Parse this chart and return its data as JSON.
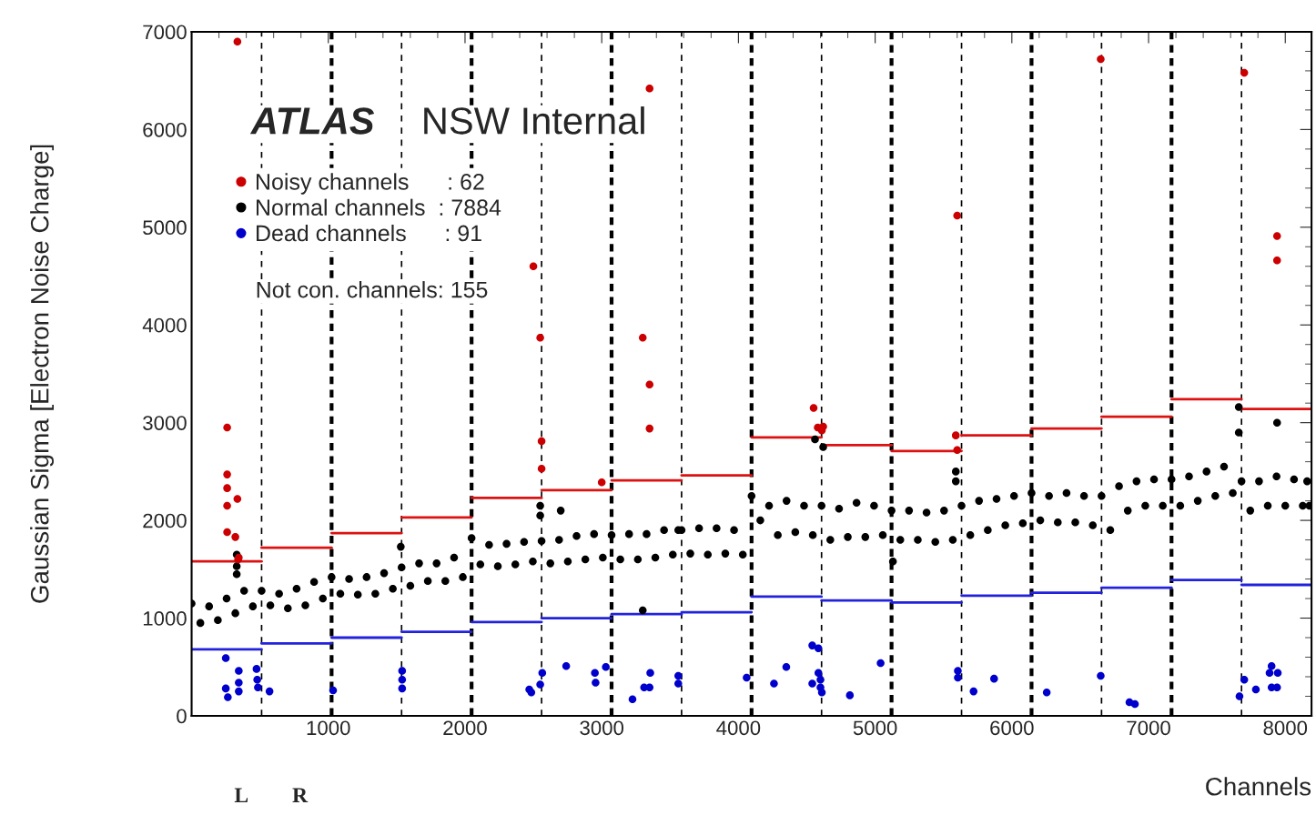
{
  "chart_data": {
    "type": "scatter",
    "xlabel": "Channels",
    "ylabel": "Gaussian Sigma [Electron Noise Charge]",
    "annotations": [
      "ATLAS",
      "NSW Internal",
      "Not con. channels: 155",
      "L",
      "R"
    ],
    "xlim": [
      0,
      8192
    ],
    "xticks": [
      1000,
      2000,
      3000,
      4000,
      5000,
      6000,
      7000,
      8000
    ],
    "ylim": [
      0,
      7000
    ],
    "yticks": [
      0,
      1000,
      2000,
      3000,
      4000,
      5000,
      6000,
      7000
    ],
    "grid": false,
    "legend": "top left",
    "marker": "circle",
    "series": [
      {
        "name": "Noisy channels      : 62",
        "color": "#cc0000",
        "x": [
          335,
          260,
          260,
          260,
          260,
          335,
          260,
          320,
          340,
          345,
          2500,
          2550,
          2560,
          2560,
          3000,
          3350,
          3300,
          3350,
          3350,
          4550,
          4580,
          4620,
          4610,
          5600,
          5590,
          5600,
          6650,
          7700,
          7940,
          7940
        ],
        "values": [
          6900,
          2950,
          2470,
          2330,
          2150,
          2220,
          1880,
          1830,
          1600,
          1620,
          4600,
          3870,
          2810,
          2530,
          2390,
          6420,
          3870,
          3390,
          2940,
          3150,
          2950,
          2960,
          2920,
          5120,
          2870,
          2720,
          6720,
          6580,
          4910,
          4660
        ]
      },
      {
        "name": "Normal channels  : 7884",
        "color": "#000000",
        "x": [
          0,
          64,
          128,
          192,
          256,
          320,
          384,
          448,
          512,
          576,
          640,
          704,
          768,
          832,
          896,
          960,
          1024,
          1088,
          1152,
          1216,
          1280,
          1344,
          1408,
          1472,
          1536,
          1600,
          1664,
          1728,
          1792,
          1856,
          1920,
          1984,
          2048,
          2112,
          2176,
          2240,
          2304,
          2368,
          2432,
          2496,
          2560,
          2624,
          2688,
          2752,
          2816,
          2880,
          2944,
          3008,
          3072,
          3136,
          3200,
          3264,
          3328,
          3392,
          3456,
          3520,
          3584,
          3648,
          3712,
          3776,
          3840,
          3904,
          3968,
          4032,
          4096,
          4160,
          4224,
          4288,
          4352,
          4416,
          4480,
          4544,
          4608,
          4672,
          4736,
          4800,
          4864,
          4928,
          4992,
          5056,
          5120,
          5184,
          5248,
          5312,
          5376,
          5440,
          5504,
          5568,
          5632,
          5696,
          5760,
          5824,
          5888,
          5952,
          6016,
          6080,
          6144,
          6208,
          6272,
          6336,
          6400,
          6464,
          6528,
          6592,
          6656,
          6720,
          6784,
          6848,
          6912,
          6976,
          7040,
          7104,
          7168,
          7232,
          7296,
          7360,
          7424,
          7488,
          7552,
          7616,
          7680,
          7744,
          7808,
          7872,
          7936,
          8000,
          8064,
          8128,
          8160,
          8176,
          330,
          330,
          330,
          1530,
          2550,
          2550,
          2700,
          3300,
          3560,
          4560,
          4620,
          5130,
          5590,
          5590,
          7660,
          7660,
          7940
        ],
        "values": [
          1150,
          950,
          1120,
          980,
          1200,
          1050,
          1280,
          1120,
          1280,
          1130,
          1250,
          1100,
          1300,
          1130,
          1370,
          1200,
          1420,
          1250,
          1400,
          1240,
          1420,
          1250,
          1460,
          1300,
          1520,
          1330,
          1560,
          1380,
          1560,
          1380,
          1620,
          1420,
          1820,
          1550,
          1750,
          1530,
          1760,
          1550,
          1780,
          1580,
          1790,
          1560,
          1800,
          1580,
          1840,
          1600,
          1860,
          1620,
          1850,
          1600,
          1860,
          1600,
          1860,
          1620,
          1900,
          1650,
          1900,
          1660,
          1920,
          1650,
          1920,
          1660,
          1900,
          1650,
          2250,
          2000,
          2150,
          1850,
          2200,
          1880,
          2150,
          1850,
          2150,
          1800,
          2120,
          1830,
          2180,
          1830,
          2150,
          1850,
          2100,
          1800,
          2100,
          1800,
          2080,
          1780,
          2100,
          1800,
          2150,
          1850,
          2200,
          1900,
          2220,
          1950,
          2250,
          1970,
          2280,
          2000,
          2250,
          1980,
          2280,
          1980,
          2250,
          1950,
          2250,
          1900,
          2350,
          2100,
          2400,
          2150,
          2420,
          2150,
          2420,
          2150,
          2450,
          2200,
          2500,
          2250,
          2550,
          2280,
          2400,
          2100,
          2400,
          2150,
          2450,
          2150,
          2420,
          2150,
          2400,
          2150,
          1650,
          1530,
          1450,
          1730,
          2150,
          2050,
          2100,
          1080,
          1900,
          2830,
          2750,
          1580,
          2500,
          2400,
          3160,
          2900,
          3000
        ]
      },
      {
        "name": "Dead channels      : 91",
        "color": "#0000cc",
        "x": [
          250,
          250,
          265,
          345,
          345,
          345,
          475,
          480,
          485,
          570,
          1035,
          1540,
          1540,
          1540,
          2470,
          2485,
          2565,
          2550,
          2740,
          2950,
          2955,
          3030,
          3225,
          3310,
          3350,
          3355,
          3560,
          3560,
          4060,
          4260,
          4350,
          4540,
          4585,
          4540,
          4585,
          4600,
          4600,
          4610,
          4815,
          5040,
          5605,
          5605,
          5720,
          5870,
          6255,
          6650,
          6860,
          6900,
          7665,
          7700,
          7785,
          7900,
          7885,
          7945,
          7900,
          7940
        ],
        "values": [
          590,
          280,
          190,
          250,
          340,
          460,
          480,
          370,
          290,
          250,
          260,
          460,
          370,
          280,
          270,
          240,
          440,
          320,
          510,
          440,
          340,
          500,
          170,
          290,
          290,
          440,
          410,
          330,
          390,
          330,
          500,
          720,
          690,
          330,
          440,
          370,
          290,
          240,
          210,
          540,
          460,
          390,
          250,
          380,
          240,
          410,
          140,
          120,
          200,
          370,
          270,
          510,
          440,
          440,
          290,
          290
        ]
      },
      {
        "type": "line",
        "marker": "none",
        "color": "#dd1111",
        "x": [
          0,
          512
        ],
        "values": [
          1580,
          1580
        ]
      },
      {
        "type": "line",
        "marker": "none",
        "color": "#dd1111",
        "x": [
          512,
          1024
        ],
        "values": [
          1720,
          1720
        ]
      },
      {
        "type": "line",
        "marker": "none",
        "color": "#dd1111",
        "x": [
          1024,
          1536
        ],
        "values": [
          1870,
          1870
        ]
      },
      {
        "type": "line",
        "marker": "none",
        "color": "#dd1111",
        "x": [
          1536,
          2048
        ],
        "values": [
          2030,
          2030
        ]
      },
      {
        "type": "line",
        "marker": "none",
        "color": "#dd1111",
        "x": [
          2048,
          2560
        ],
        "values": [
          2230,
          2230
        ]
      },
      {
        "type": "line",
        "marker": "none",
        "color": "#dd1111",
        "x": [
          2560,
          3072
        ],
        "values": [
          2310,
          2310
        ]
      },
      {
        "type": "line",
        "marker": "none",
        "color": "#dd1111",
        "x": [
          3072,
          3584
        ],
        "values": [
          2410,
          2410
        ]
      },
      {
        "type": "line",
        "marker": "none",
        "color": "#dd1111",
        "x": [
          3584,
          4096
        ],
        "values": [
          2460,
          2460
        ]
      },
      {
        "type": "line",
        "marker": "none",
        "color": "#dd1111",
        "x": [
          4096,
          4608
        ],
        "values": [
          2850,
          2850
        ]
      },
      {
        "type": "line",
        "marker": "none",
        "color": "#dd1111",
        "x": [
          4608,
          5120
        ],
        "values": [
          2770,
          2770
        ]
      },
      {
        "type": "line",
        "marker": "none",
        "color": "#dd1111",
        "x": [
          5120,
          5632
        ],
        "values": [
          2710,
          2710
        ]
      },
      {
        "type": "line",
        "marker": "none",
        "color": "#dd1111",
        "x": [
          5632,
          6144
        ],
        "values": [
          2870,
          2870
        ]
      },
      {
        "type": "line",
        "marker": "none",
        "color": "#dd1111",
        "x": [
          6144,
          6656
        ],
        "values": [
          2940,
          2940
        ]
      },
      {
        "type": "line",
        "marker": "none",
        "color": "#dd1111",
        "x": [
          6656,
          7168
        ],
        "values": [
          3060,
          3060
        ]
      },
      {
        "type": "line",
        "marker": "none",
        "color": "#dd1111",
        "x": [
          7168,
          7680
        ],
        "values": [
          3240,
          3240
        ]
      },
      {
        "type": "line",
        "marker": "none",
        "color": "#dd1111",
        "x": [
          7680,
          8192
        ],
        "values": [
          3140,
          3140
        ]
      },
      {
        "type": "line",
        "marker": "none",
        "color": "#2222dd",
        "x": [
          0,
          512
        ],
        "values": [
          680,
          680
        ]
      },
      {
        "type": "line",
        "marker": "none",
        "color": "#2222dd",
        "x": [
          512,
          1024
        ],
        "values": [
          740,
          740
        ]
      },
      {
        "type": "line",
        "marker": "none",
        "color": "#2222dd",
        "x": [
          1024,
          1536
        ],
        "values": [
          800,
          800
        ]
      },
      {
        "type": "line",
        "marker": "none",
        "color": "#2222dd",
        "x": [
          1536,
          2048
        ],
        "values": [
          860,
          860
        ]
      },
      {
        "type": "line",
        "marker": "none",
        "color": "#2222dd",
        "x": [
          2048,
          2560
        ],
        "values": [
          960,
          960
        ]
      },
      {
        "type": "line",
        "marker": "none",
        "color": "#2222dd",
        "x": [
          2560,
          3072
        ],
        "values": [
          1000,
          1000
        ]
      },
      {
        "type": "line",
        "marker": "none",
        "color": "#2222dd",
        "x": [
          3072,
          3584
        ],
        "values": [
          1040,
          1040
        ]
      },
      {
        "type": "line",
        "marker": "none",
        "color": "#2222dd",
        "x": [
          3584,
          4096
        ],
        "values": [
          1060,
          1060
        ]
      },
      {
        "type": "line",
        "marker": "none",
        "color": "#2222dd",
        "x": [
          4096,
          4608
        ],
        "values": [
          1220,
          1220
        ]
      },
      {
        "type": "line",
        "marker": "none",
        "color": "#2222dd",
        "x": [
          4608,
          5120
        ],
        "values": [
          1180,
          1180
        ]
      },
      {
        "type": "line",
        "marker": "none",
        "color": "#2222dd",
        "x": [
          5120,
          5632
        ],
        "values": [
          1160,
          1160
        ]
      },
      {
        "type": "line",
        "marker": "none",
        "color": "#2222dd",
        "x": [
          5632,
          6144
        ],
        "values": [
          1230,
          1230
        ]
      },
      {
        "type": "line",
        "marker": "none",
        "color": "#2222dd",
        "x": [
          6144,
          6656
        ],
        "values": [
          1260,
          1260
        ]
      },
      {
        "type": "line",
        "marker": "none",
        "color": "#2222dd",
        "x": [
          6656,
          7168
        ],
        "values": [
          1310,
          1310
        ]
      },
      {
        "type": "line",
        "marker": "none",
        "color": "#2222dd",
        "x": [
          7168,
          7680
        ],
        "values": [
          1390,
          1390
        ]
      },
      {
        "type": "line",
        "marker": "none",
        "color": "#2222dd",
        "x": [
          7680,
          8192
        ],
        "values": [
          1340,
          1340
        ]
      }
    ],
    "ref_lines": [
      {
        "axis": "x",
        "value": 512,
        "color": "#000000",
        "line_style": "dashed"
      },
      {
        "axis": "x",
        "value": 1024,
        "color": "#000000",
        "line_style": "dotted"
      },
      {
        "axis": "x",
        "value": 1536,
        "color": "#000000",
        "line_style": "dashed"
      },
      {
        "axis": "x",
        "value": 2048,
        "color": "#000000",
        "line_style": "dotted"
      },
      {
        "axis": "x",
        "value": 2560,
        "color": "#000000",
        "line_style": "dashed"
      },
      {
        "axis": "x",
        "value": 3072,
        "color": "#000000",
        "line_style": "dotted"
      },
      {
        "axis": "x",
        "value": 3584,
        "color": "#000000",
        "line_style": "dashed"
      },
      {
        "axis": "x",
        "value": 4096,
        "color": "#000000",
        "line_style": "dotted"
      },
      {
        "axis": "x",
        "value": 4608,
        "color": "#000000",
        "line_style": "dashed"
      },
      {
        "axis": "x",
        "value": 5120,
        "color": "#000000",
        "line_style": "dotted"
      },
      {
        "axis": "x",
        "value": 5632,
        "color": "#000000",
        "line_style": "dashed"
      },
      {
        "axis": "x",
        "value": 6144,
        "color": "#000000",
        "line_style": "dotted"
      },
      {
        "axis": "x",
        "value": 6656,
        "color": "#000000",
        "line_style": "dashed"
      },
      {
        "axis": "x",
        "value": 7168,
        "color": "#000000",
        "line_style": "dotted"
      },
      {
        "axis": "x",
        "value": 7680,
        "color": "#000000",
        "line_style": "dashed"
      }
    ]
  }
}
